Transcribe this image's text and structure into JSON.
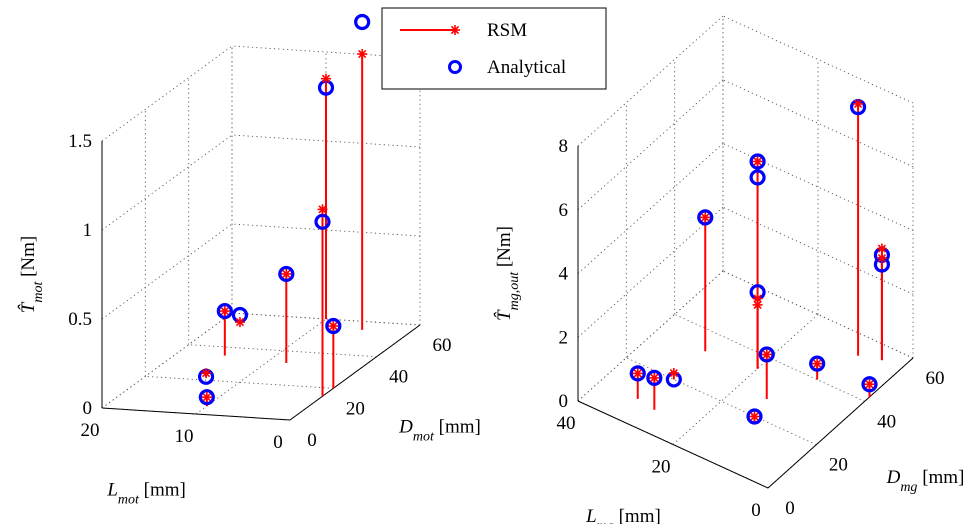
{
  "legend": {
    "placement": "top-center",
    "entries": [
      {
        "label": "RSM",
        "color": "#ff0000",
        "marker": "asterisk-with-stem"
      },
      {
        "label": "Analytical",
        "color": "#0000ff",
        "marker": "circle"
      }
    ]
  },
  "chart_data": [
    {
      "type": "scatter",
      "variant": "3d-stem",
      "xlabel": {
        "sym": "L",
        "sub": "mot",
        "unit": " [mm]"
      },
      "ylabel": {
        "sym": "D",
        "sub": "mot",
        "unit": " [mm]"
      },
      "zlabel": {
        "sym": "T̂",
        "sub": "mot",
        "unit": " [Nm]"
      },
      "xlim": [
        0,
        20
      ],
      "ylim": [
        0,
        60
      ],
      "zlim": [
        0,
        1.5
      ],
      "xticks": [
        "0",
        "10",
        "20"
      ],
      "yticks": [
        "0",
        "20",
        "40",
        "60"
      ],
      "zticks": [
        "0",
        "0.5",
        "1",
        "1.5"
      ],
      "grid": true,
      "series": [
        {
          "name": "RSM",
          "color": "#ff0000",
          "points": [
            [
              0,
              15,
              1.05
            ],
            [
              0,
              20,
              0.35
            ],
            [
              5,
              55,
              1.55
            ],
            [
              8,
              33,
              0.5
            ],
            [
              10,
              60,
              1.35
            ],
            [
              10,
              5,
              0.05
            ],
            [
              14,
              22,
              0.02
            ],
            [
              15,
              35,
              0.25
            ],
            [
              18,
              55,
              0.0
            ]
          ]
        },
        {
          "name": "Analytical",
          "color": "#0000ff",
          "points": [
            [
              0,
              15,
              0.98
            ],
            [
              0,
              20,
              0.35
            ],
            [
              5,
              55,
              1.73
            ],
            [
              8,
              33,
              0.5
            ],
            [
              10,
              60,
              1.3
            ],
            [
              10,
              5,
              0.05
            ],
            [
              14,
              22,
              0.0
            ],
            [
              15,
              35,
              0.25
            ],
            [
              18,
              55,
              0.04
            ]
          ]
        }
      ]
    },
    {
      "type": "scatter",
      "variant": "3d-stem",
      "xlabel": {
        "sym": "L",
        "sub": "mg",
        "unit": " [mm]"
      },
      "ylabel": {
        "sym": "D",
        "sub": "mg",
        "unit": " [mm]"
      },
      "zlabel": {
        "sym": "T̂",
        "sub": "mg,out",
        "unit": " [Nm]"
      },
      "xlim": [
        0,
        40
      ],
      "ylim": [
        0,
        60
      ],
      "zlim": [
        0,
        8
      ],
      "xticks": [
        "0",
        "20",
        "40"
      ],
      "yticks": [
        "0",
        "20",
        "40",
        "60"
      ],
      "zticks": [
        "0",
        "2",
        "4",
        "6",
        "8"
      ],
      "grid": true,
      "series": [
        {
          "name": "RSM",
          "color": "#ff0000",
          "points": [
            [
              32,
              9,
              0.8
            ],
            [
              28,
              8,
              1.0
            ],
            [
              30,
              20,
              0.2
            ],
            [
              30,
              33,
              4.2
            ],
            [
              12,
              18,
              0.2
            ],
            [
              20,
              35,
              6.5
            ],
            [
              20,
              35,
              2.2
            ],
            [
              20,
              35,
              2.0
            ],
            [
              14,
              27,
              1.4
            ],
            [
              10,
              40,
              0.5
            ],
            [
              8,
              53,
              7.9
            ],
            [
              4,
              55,
              3.5
            ],
            [
              4,
              55,
              3.2
            ],
            [
              0,
              42,
              0.4
            ]
          ]
        },
        {
          "name": "Analytical",
          "color": "#0000ff",
          "points": [
            [
              32,
              9,
              0.8
            ],
            [
              28,
              8,
              1.0
            ],
            [
              30,
              20,
              0.0
            ],
            [
              30,
              33,
              4.2
            ],
            [
              12,
              18,
              0.2
            ],
            [
              20,
              35,
              6.5
            ],
            [
              20,
              35,
              2.4
            ],
            [
              20,
              35,
              6.0
            ],
            [
              14,
              27,
              1.4
            ],
            [
              10,
              40,
              0.5
            ],
            [
              8,
              53,
              7.8
            ],
            [
              4,
              55,
              3.3
            ],
            [
              4,
              55,
              3.0
            ],
            [
              0,
              42,
              0.4
            ]
          ]
        }
      ]
    }
  ]
}
